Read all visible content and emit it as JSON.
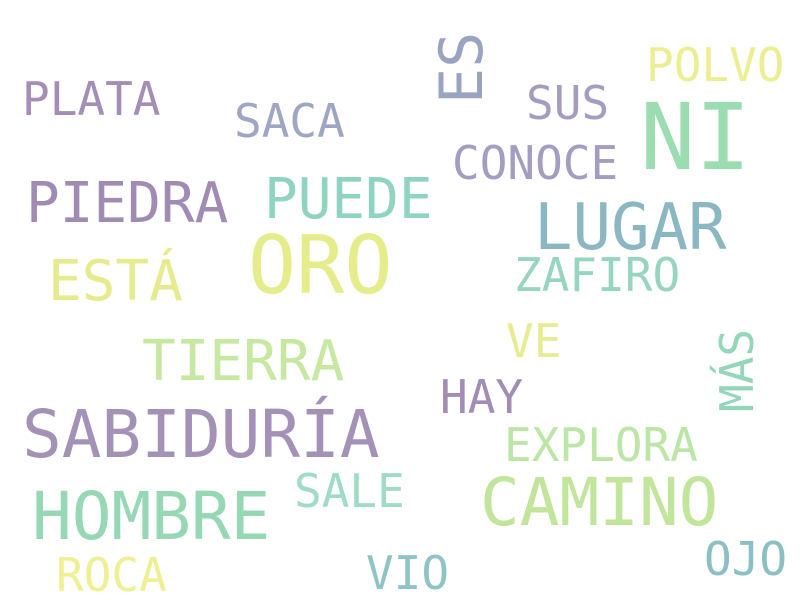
{
  "words": [
    {
      "text": "ORO",
      "color": "#e5ec8a"
    },
    {
      "text": "NI",
      "color": "#9bdcb1"
    },
    {
      "text": "LUGAR",
      "color": "#8ab7c2"
    },
    {
      "text": "SABIDURÍA",
      "color": "#a391b7"
    },
    {
      "text": "HOMBRE",
      "color": "#96d8b4"
    },
    {
      "text": "CAMINO",
      "color": "#c0e59b"
    },
    {
      "text": "PIEDRA",
      "color": "#a08bb4"
    },
    {
      "text": "PUEDE",
      "color": "#8fd3c1"
    },
    {
      "text": "ESTÁ",
      "color": "#e6ec8e"
    },
    {
      "text": "TIERRA",
      "color": "#c6e8a0"
    },
    {
      "text": "ES",
      "color": "#9aa3bf"
    },
    {
      "text": "PLATA",
      "color": "#a48db6"
    },
    {
      "text": "SACA",
      "color": "#9ea6c4"
    },
    {
      "text": "SUS",
      "color": "#a59cc0"
    },
    {
      "text": "POLVO",
      "color": "#ecef91"
    },
    {
      "text": "CONOCE",
      "color": "#a49cc1"
    },
    {
      "text": "ZAFIRO",
      "color": "#96d5c0"
    },
    {
      "text": "VE",
      "color": "#e7ec92"
    },
    {
      "text": "MÁS",
      "color": "#94d6b9"
    },
    {
      "text": "HAY",
      "color": "#a28db5"
    },
    {
      "text": "EXPLORA",
      "color": "#bce6a6"
    },
    {
      "text": "SALE",
      "color": "#9fdcc6"
    },
    {
      "text": "ROCA",
      "color": "#eef093"
    },
    {
      "text": "VIO",
      "color": "#8fc4c7"
    },
    {
      "text": "OJO",
      "color": "#8ac0c3"
    }
  ]
}
